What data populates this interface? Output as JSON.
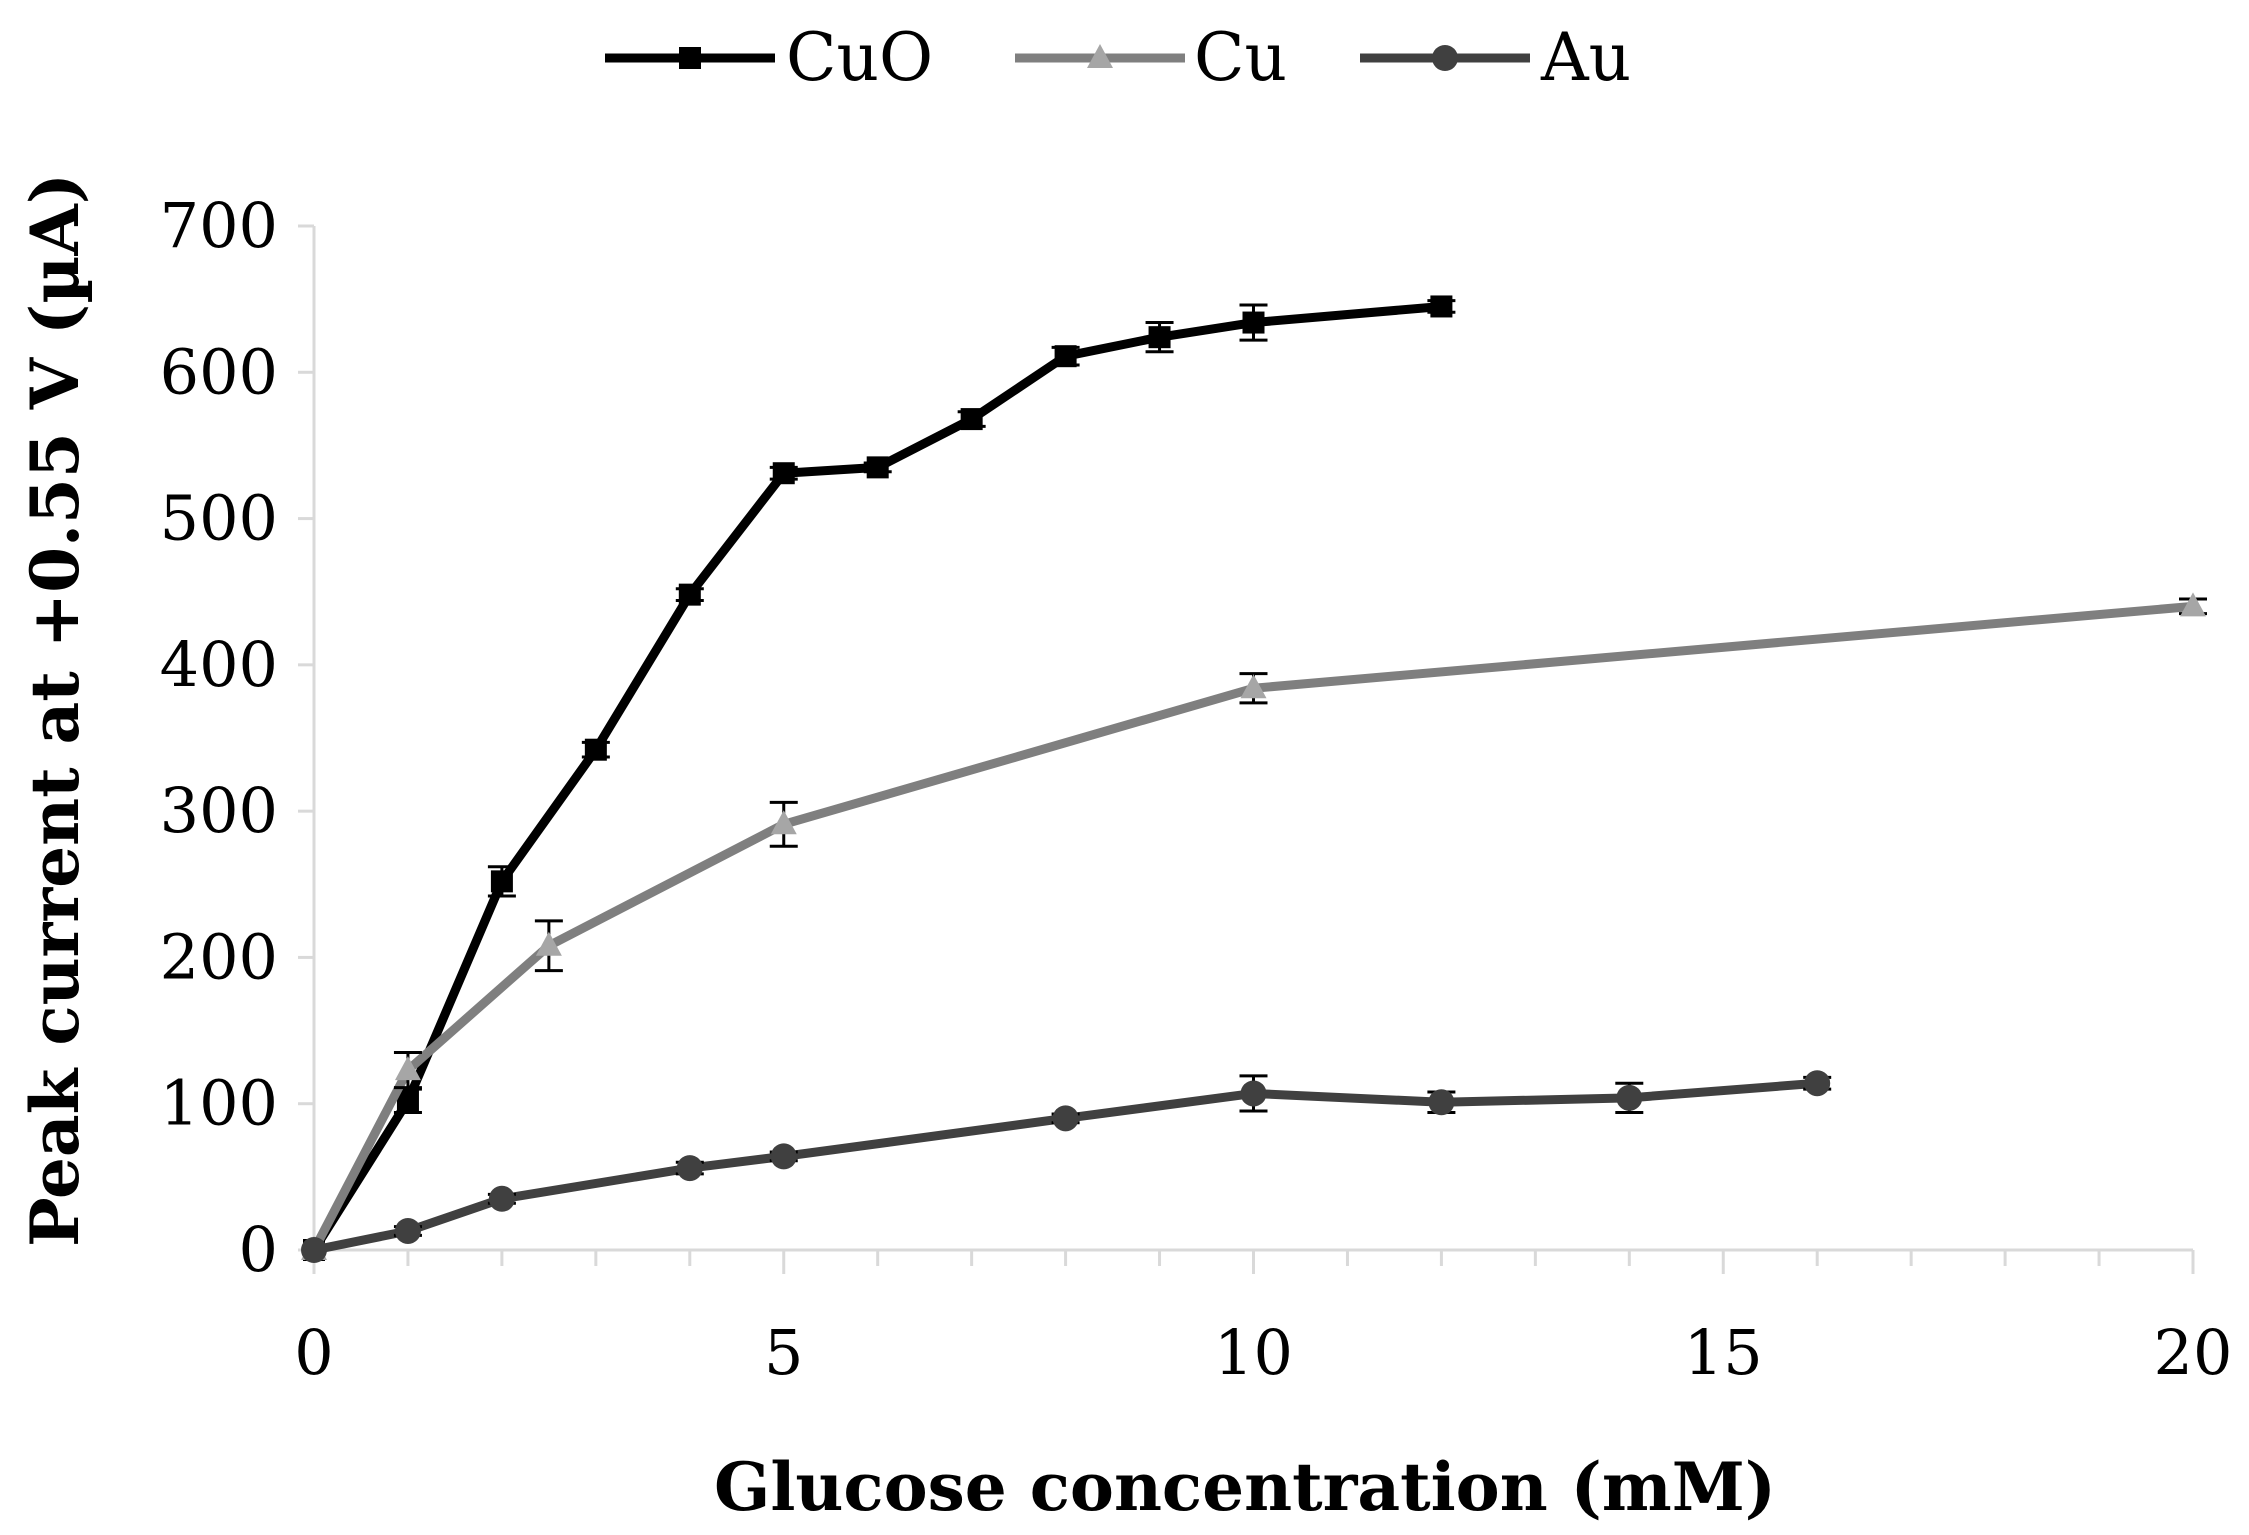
{
  "chart_data": {
    "type": "line",
    "title": "",
    "xlabel": "Glucose concentration (mM)",
    "ylabel": "Peak current at +0.55 V (µA)",
    "xlim": [
      0,
      20
    ],
    "ylim": [
      0,
      700
    ],
    "xticks": [
      0,
      5,
      10,
      15,
      20
    ],
    "yticks": [
      0,
      100,
      200,
      300,
      400,
      500,
      600,
      700
    ],
    "x_minor_step": 1,
    "grid": false,
    "legend_position": "top-center",
    "series": [
      {
        "name": "CuO",
        "marker": "square",
        "color": "#000000",
        "x": [
          0,
          1,
          2,
          3,
          4,
          5,
          6,
          7,
          8,
          9,
          10,
          12
        ],
        "y": [
          0,
          102,
          252,
          342,
          448,
          531,
          535,
          568,
          611,
          624,
          634,
          645
        ],
        "error": [
          0,
          8,
          10,
          5,
          4,
          4,
          3,
          5,
          6,
          10,
          12,
          4
        ]
      },
      {
        "name": "Cu",
        "marker": "triangle",
        "color": "#7f7f7f",
        "marker_color": "#a6a6a6",
        "x": [
          0,
          1,
          2.5,
          5,
          10,
          20
        ],
        "y": [
          0,
          123,
          208,
          291,
          384,
          440
        ],
        "error": [
          0,
          12,
          17,
          15,
          10,
          5
        ]
      },
      {
        "name": "Au",
        "marker": "circle",
        "color": "#404040",
        "x": [
          0,
          1,
          2,
          4,
          5,
          8,
          10,
          12,
          14,
          16
        ],
        "y": [
          0,
          13,
          35,
          56,
          64,
          90,
          107,
          101,
          104,
          114
        ],
        "error": [
          0,
          3,
          3,
          4,
          3,
          3,
          12,
          7,
          10,
          4
        ]
      }
    ]
  }
}
